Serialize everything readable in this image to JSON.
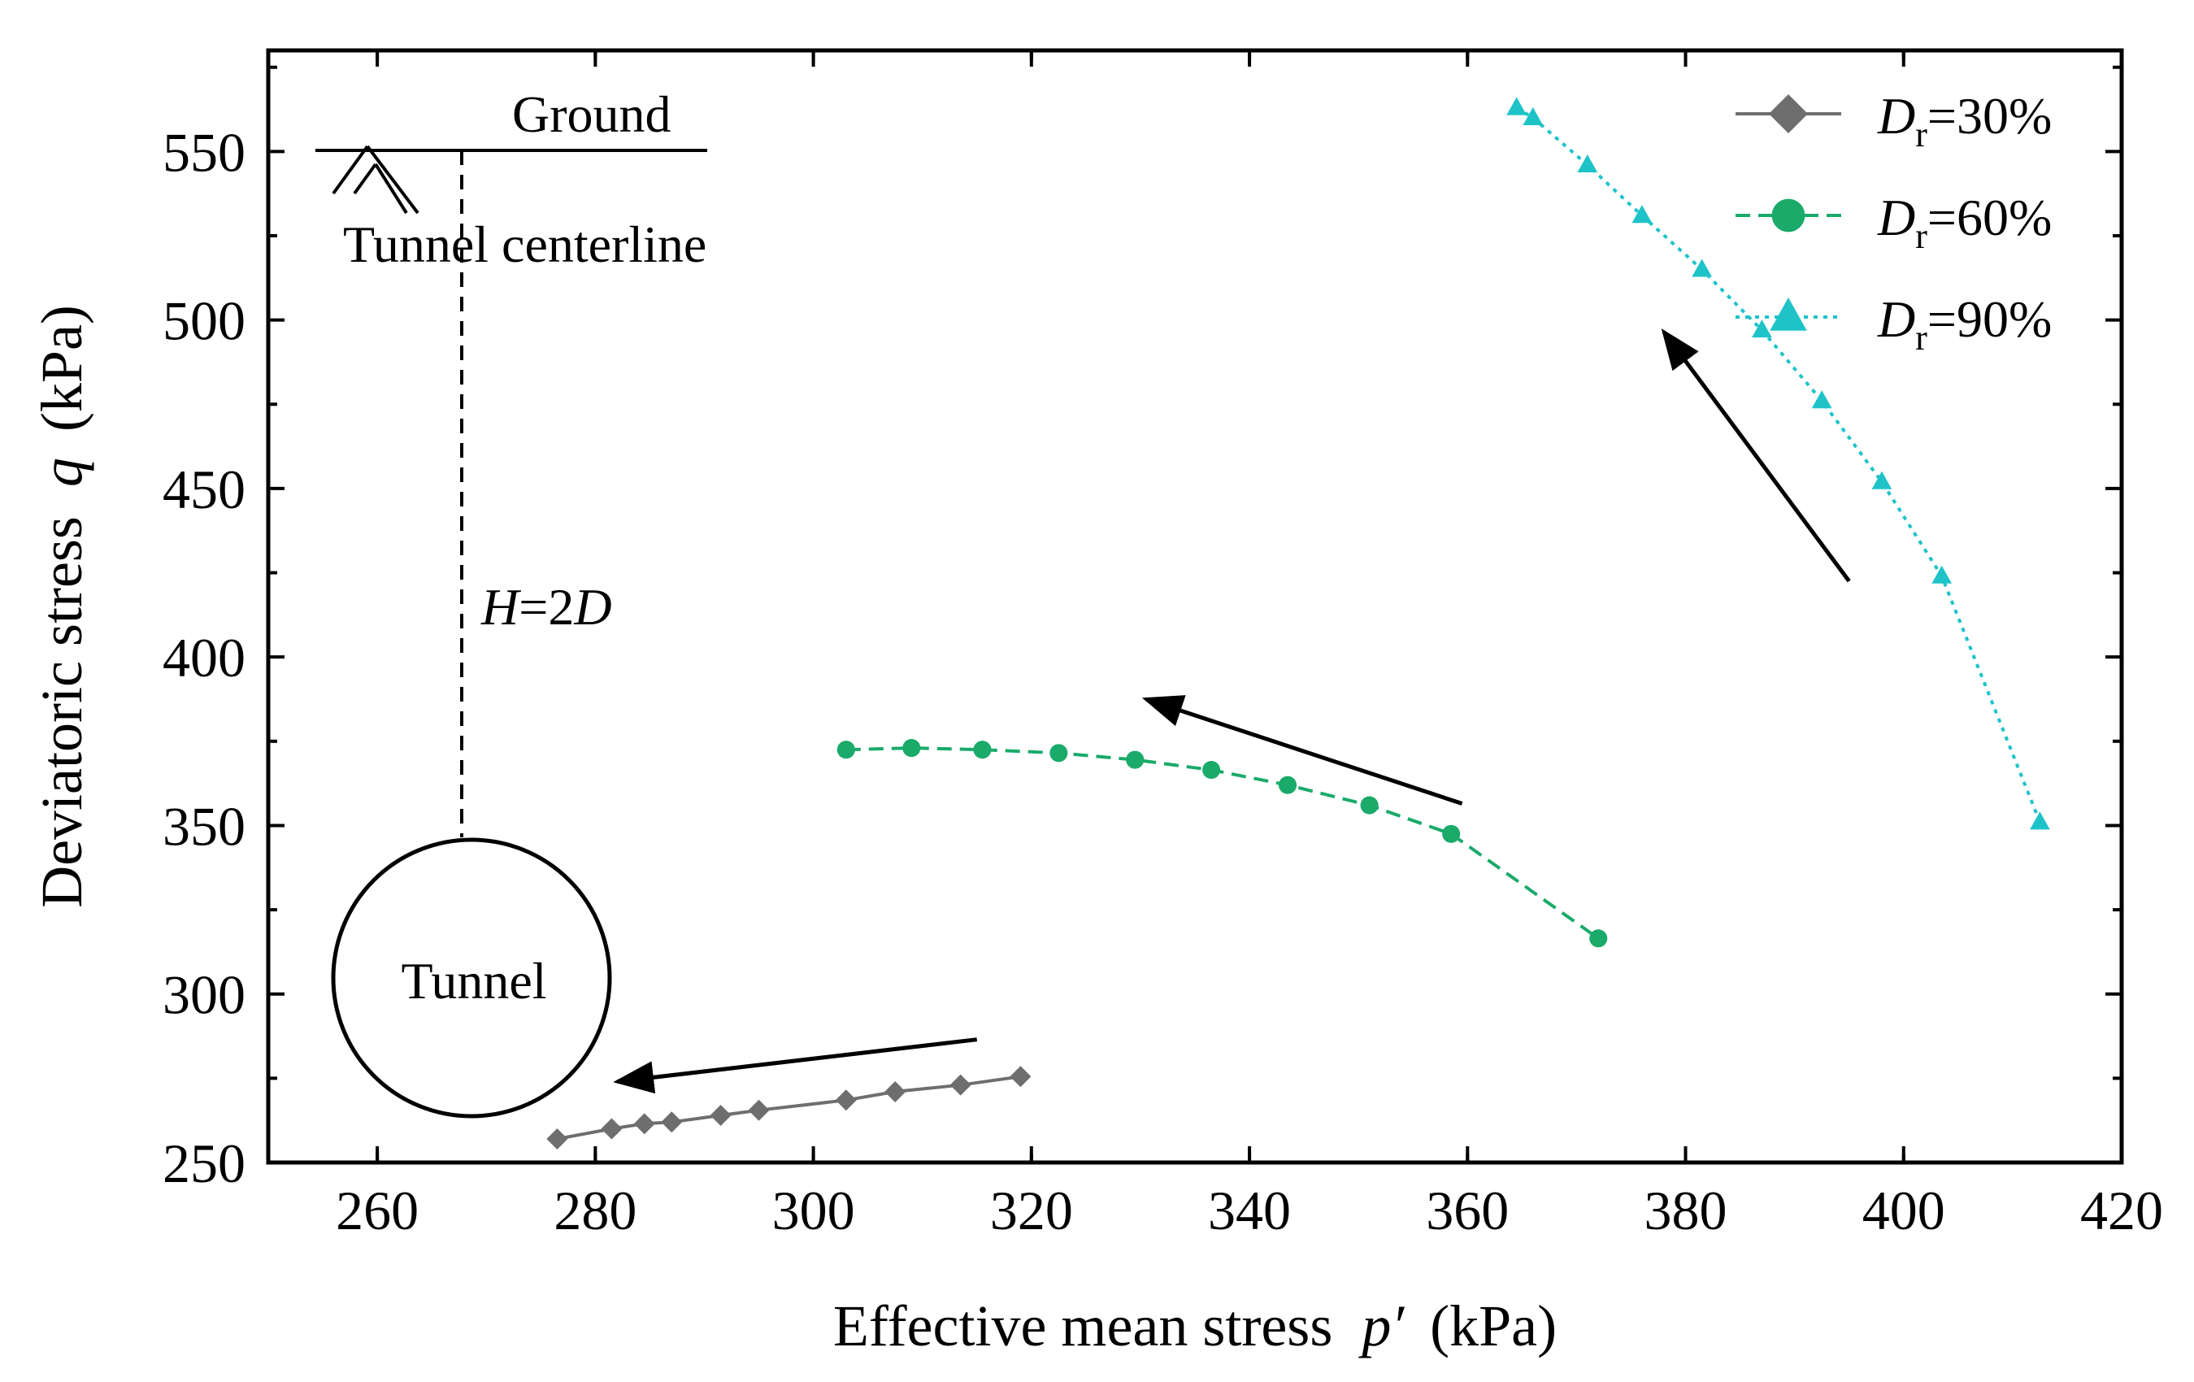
{
  "chart_data": {
    "type": "line",
    "title": "",
    "xlabel": "Effective mean stress",
    "xlabel_symbol": "p′",
    "xlabel_unit": "(kPa)",
    "ylabel": "Deviatoric stress",
    "ylabel_symbol": "q",
    "ylabel_unit": "(kPa)",
    "xlim": [
      250,
      420
    ],
    "ylim": [
      250,
      580
    ],
    "xticks": [
      260,
      280,
      300,
      320,
      340,
      360,
      380,
      400,
      420
    ],
    "yticks": [
      250,
      300,
      350,
      400,
      450,
      500,
      550
    ],
    "legend_position": "top-right",
    "series": [
      {
        "name": "Dr=30%",
        "label_main": "D",
        "label_sub": "r",
        "label_rest": "=30%",
        "marker": "diamond",
        "line": "solid",
        "color": "#6e6e6e",
        "x": [
          276.5,
          281.5,
          284.5,
          287,
          291.5,
          295,
          303,
          307.5,
          313.5,
          319
        ],
        "y": [
          257,
          260,
          261.5,
          262,
          264,
          265.5,
          268.5,
          271,
          273,
          275.5
        ]
      },
      {
        "name": "Dr=60%",
        "label_main": "D",
        "label_sub": "r",
        "label_rest": "=60%",
        "marker": "circle",
        "line": "dashed",
        "color": "#1aaa6a",
        "x": [
          303,
          309,
          315.5,
          322.5,
          329.5,
          336.5,
          343.5,
          351,
          358.5,
          372
        ],
        "y": [
          372.5,
          373,
          372.5,
          371.5,
          369.5,
          366.5,
          362,
          356,
          347.5,
          316.5
        ]
      },
      {
        "name": "Dr=90%",
        "label_main": "D",
        "label_sub": "r",
        "label_rest": "=90%",
        "marker": "triangle",
        "line": "dotted",
        "color": "#1ec3c8",
        "x": [
          364.5,
          366,
          371,
          376,
          381.5,
          387,
          392.5,
          398,
          403.5,
          412.5
        ],
        "y": [
          563,
          560,
          546,
          531,
          515,
          497,
          476,
          452,
          424,
          351
        ]
      }
    ],
    "arrows": [
      {
        "from": [
          315,
          286.5
        ],
        "to": [
          282,
          274
        ]
      },
      {
        "from": [
          359.5,
          356.5
        ],
        "to": [
          330.5,
          387.5
        ]
      },
      {
        "from": [
          395,
          422.5
        ],
        "to": [
          378,
          496.5
        ]
      }
    ],
    "annotations": {
      "ground": "Ground",
      "centerline": "Tunnel centerline",
      "tunnel": "Tunnel",
      "depth_h": "H",
      "depth_eq": "=2",
      "depth_d": "D"
    }
  }
}
